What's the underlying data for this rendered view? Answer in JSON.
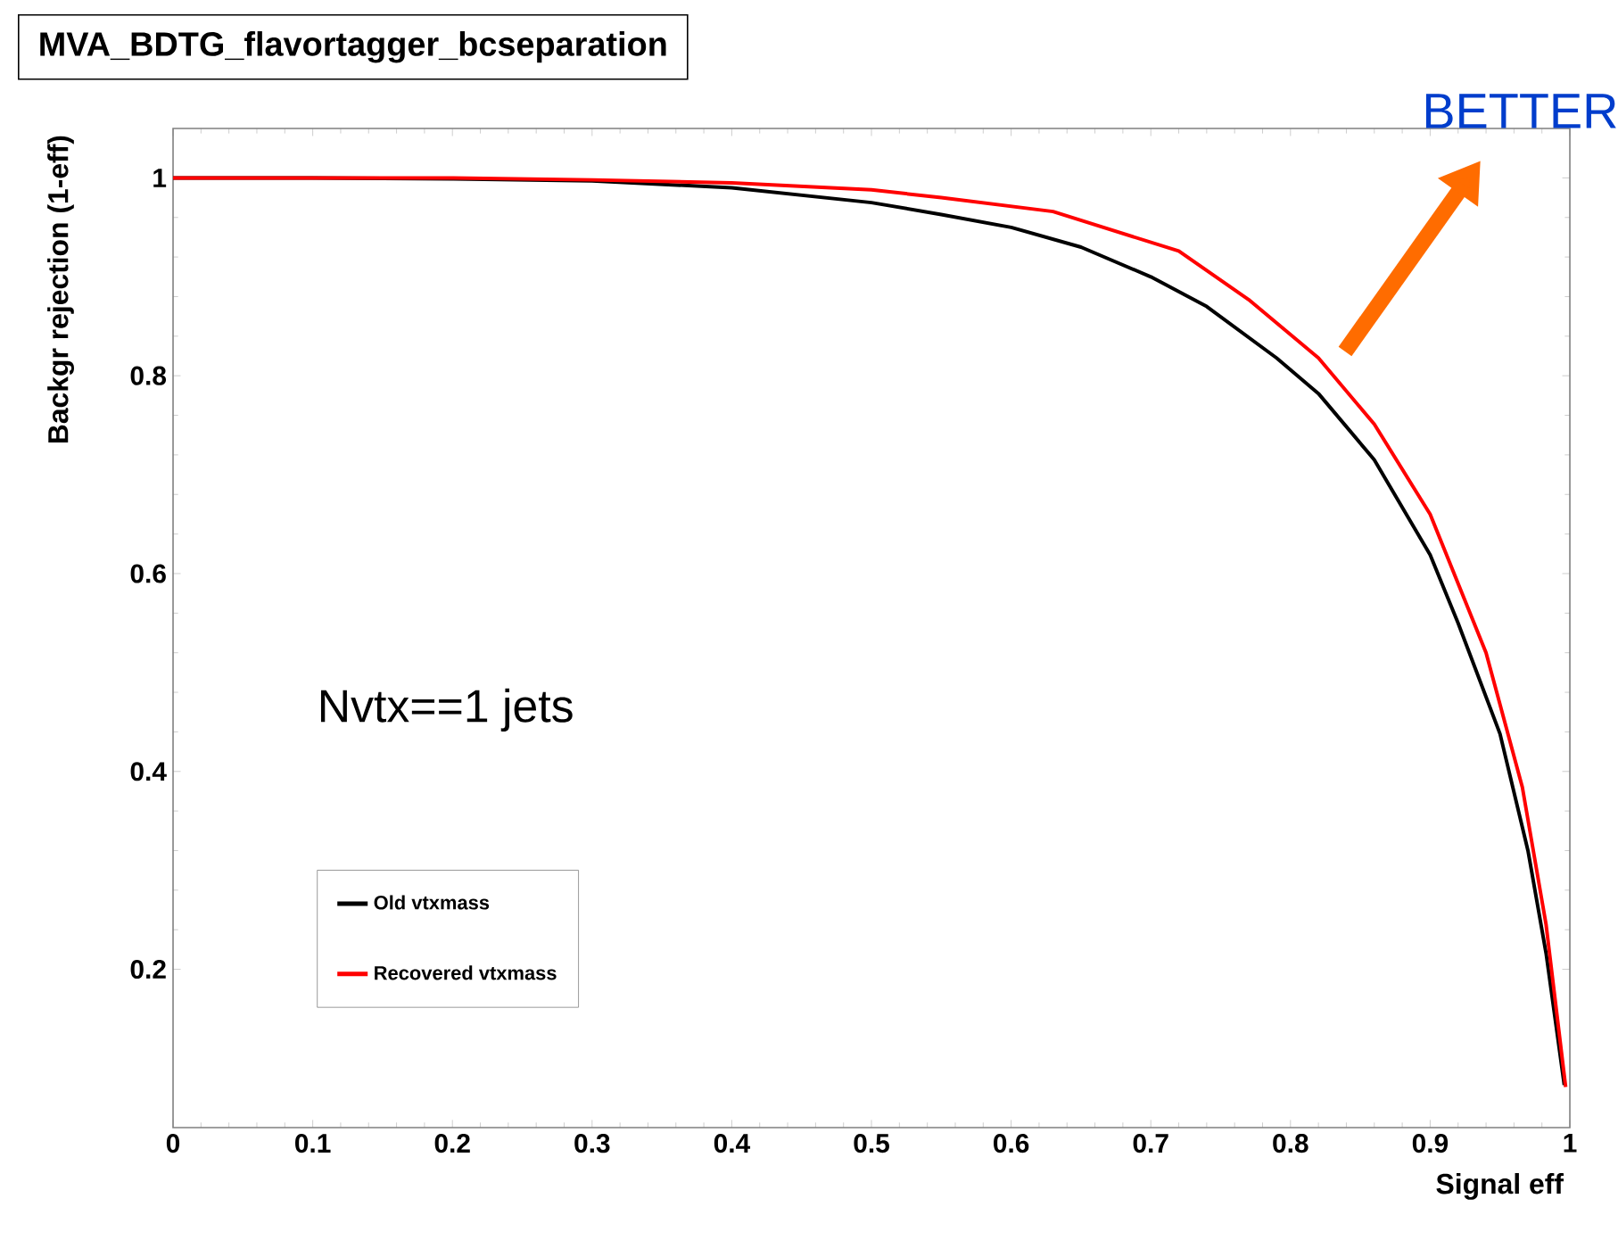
{
  "chart_data": {
    "type": "line",
    "title": "MVA_BDTG_flavortagger_bcseparation",
    "xlabel": "Signal eff",
    "ylabel": "Backgr rejection (1-eff)",
    "annotations": [
      "Nvtx==1 jets",
      "BETTER"
    ],
    "xlim": [
      0,
      1
    ],
    "ylim": [
      0.04,
      1.05
    ],
    "xticks": [
      0,
      0.1,
      0.2,
      0.3,
      0.4,
      0.5,
      0.6,
      0.7,
      0.8,
      0.9,
      1
    ],
    "yticks": [
      0.2,
      0.4,
      0.6,
      0.8,
      1
    ],
    "grid": false,
    "legend": "bottom left",
    "marker": "none",
    "line_style": "solid",
    "series": [
      {
        "name": "Old vtxmass",
        "color": "#000000",
        "x": [
          0,
          0.1,
          0.2,
          0.3,
          0.4,
          0.5,
          0.55,
          0.6,
          0.65,
          0.7,
          0.74,
          0.79,
          0.82,
          0.86,
          0.9,
          0.92,
          0.95,
          0.97,
          0.983,
          0.996
        ],
        "values": [
          1,
          1,
          0.999,
          0.997,
          0.99,
          0.975,
          0.963,
          0.95,
          0.93,
          0.9,
          0.87,
          0.818,
          0.782,
          0.715,
          0.619,
          0.55,
          0.438,
          0.32,
          0.216,
          0.083
        ]
      },
      {
        "name": "Recovered vtxmass",
        "color": "#ff0000",
        "x": [
          0,
          0.1,
          0.2,
          0.3,
          0.4,
          0.5,
          0.55,
          0.63,
          0.72,
          0.77,
          0.82,
          0.86,
          0.9,
          0.94,
          0.966,
          0.983,
          0.997
        ],
        "values": [
          1,
          1,
          1,
          0.998,
          0.995,
          0.988,
          0.98,
          0.966,
          0.926,
          0.877,
          0.818,
          0.751,
          0.66,
          0.52,
          0.384,
          0.245,
          0.081
        ]
      }
    ]
  }
}
